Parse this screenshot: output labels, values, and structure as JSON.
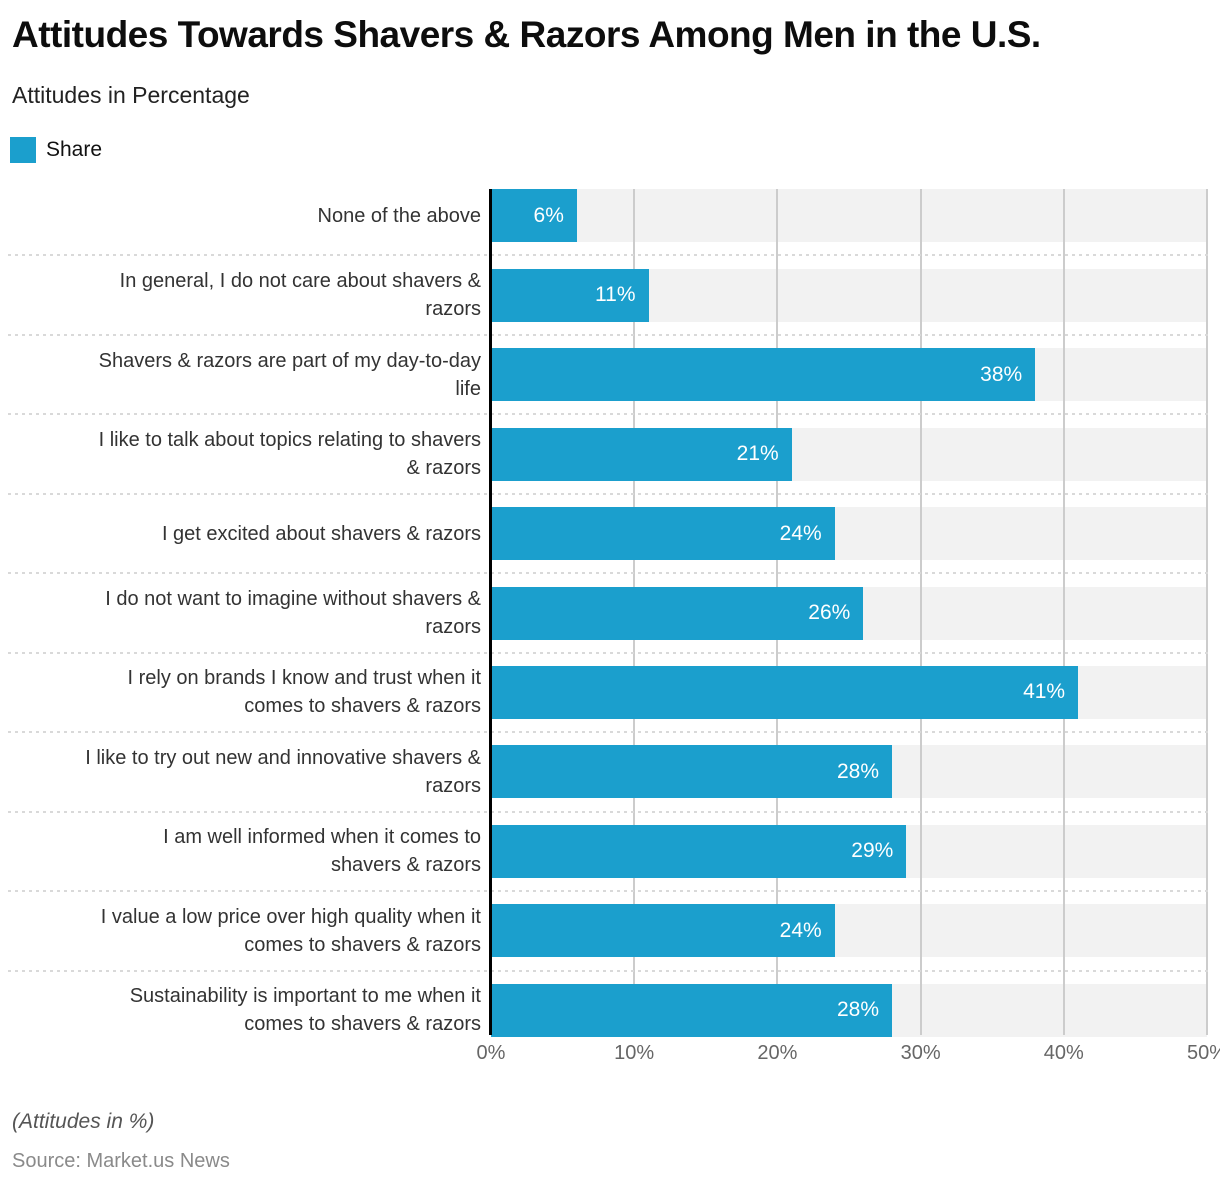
{
  "header": {
    "title": "Attitudes Towards Shavers & Razors Among Men in the U.S.",
    "subtitle": "Attitudes in Percentage"
  },
  "legend": {
    "label": "Share",
    "color": "#1b9fcd"
  },
  "chart_data": {
    "type": "bar",
    "orientation": "horizontal",
    "title": "Attitudes Towards Shavers & Razors Among Men in the U.S.",
    "subtitle": "Attitudes in Percentage",
    "series": [
      {
        "name": "Share",
        "values": [
          6,
          11,
          38,
          21,
          24,
          26,
          41,
          28,
          29,
          24,
          28
        ]
      }
    ],
    "categories": [
      "None of the above",
      "In general, I do not care about shavers & razors",
      "Shavers & razors are part of my day-to-day life",
      "I like to talk about topics relating to shavers & razors",
      "I get excited about shavers & razors",
      "I do not want to imagine without shavers & razors",
      "I rely on brands I know and trust when it comes to shavers & razors",
      "I like to try out new and innovative shavers & razors",
      "I am well informed when it comes to shavers & razors",
      "I value a low price over high quality when it comes to shavers & razors",
      "Sustainability is important to me when it comes to shavers & razors"
    ],
    "category_label_lines": [
      [
        "None of the above"
      ],
      [
        "In general, I do not care about shavers &",
        "razors"
      ],
      [
        "Shavers & razors are part of my day-to-day",
        "life"
      ],
      [
        "I like to talk about topics relating to shavers",
        "& razors"
      ],
      [
        "I get excited about shavers & razors"
      ],
      [
        "I do not want to imagine without shavers &",
        "razors"
      ],
      [
        "I rely on brands I know and trust when it",
        "comes to shavers & razors"
      ],
      [
        "I like to try out new and innovative shavers &",
        "razors"
      ],
      [
        "I am well informed when it comes to",
        "shavers & razors"
      ],
      [
        "I value a low price over high quality when it",
        "comes to shavers & razors"
      ],
      [
        "Sustainability is important to me when it",
        "comes to shavers & razors"
      ]
    ],
    "value_suffix": "%",
    "x_ticks": [
      "0%",
      "10%",
      "20%",
      "30%",
      "40%",
      "50%"
    ],
    "xlim": [
      0,
      50
    ],
    "xlabel": "",
    "ylabel": "",
    "grid": true,
    "legend_position": "top-left",
    "bar_color": "#1b9fcd",
    "band_color": "#f2f2f2",
    "gridline_color": "#cccccc",
    "separator_color": "#d9d9d9",
    "axis_color": "#000000"
  },
  "footer": {
    "note": "(Attitudes in %)",
    "source": "Source: Market.us News"
  }
}
